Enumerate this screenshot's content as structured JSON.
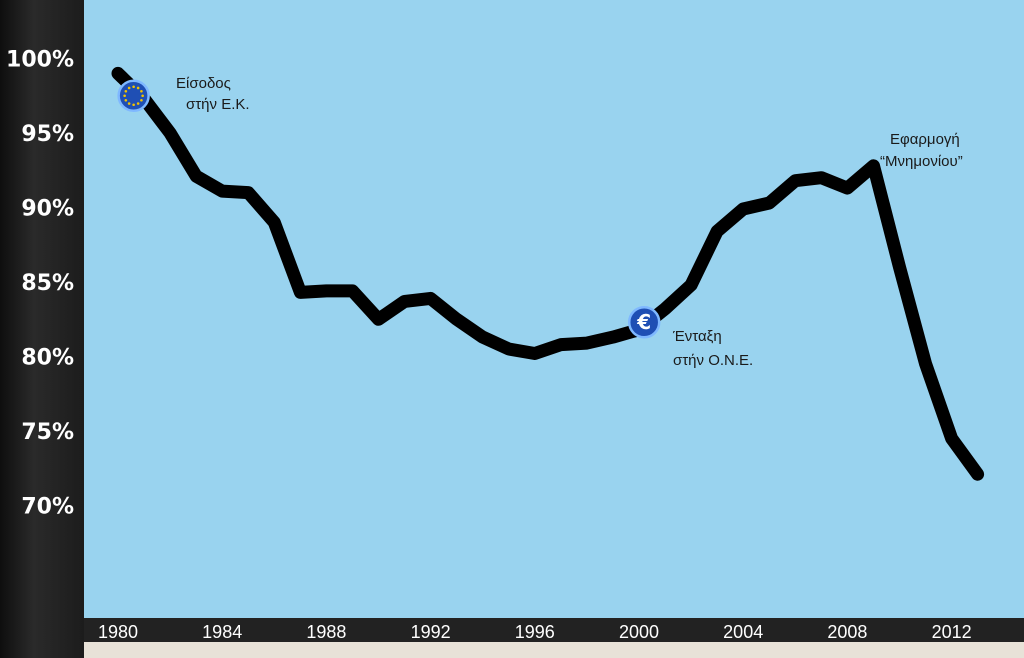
{
  "chart_data": {
    "type": "line",
    "title": "",
    "xlabel": "",
    "ylabel": "",
    "ylim": [
      68,
      101
    ],
    "xlim": [
      1979.3,
      2014.3
    ],
    "y_ticks": [
      "100%",
      "95%",
      "90%",
      "85%",
      "80%",
      "75%",
      "70%"
    ],
    "y_tick_values": [
      100,
      95,
      90,
      85,
      80,
      75,
      70
    ],
    "x_ticks": [
      "1980",
      "1984",
      "1988",
      "1992",
      "1996",
      "2000",
      "2004",
      "2008",
      "2012"
    ],
    "x_tick_values": [
      1980,
      1984,
      1988,
      1992,
      1996,
      2000,
      2004,
      2008,
      2012
    ],
    "grid": false,
    "series": [
      {
        "x": [
          1980,
          1981,
          1982,
          1983,
          1984,
          1985,
          1986,
          1987,
          1988,
          1989,
          1990,
          1991,
          1992,
          1993,
          1994,
          1995,
          1996,
          1997,
          1998,
          1999,
          2000,
          2001,
          2002,
          2003,
          2004,
          2005,
          2006,
          2007,
          2008,
          2009,
          2010,
          2011,
          2012,
          2013
        ],
        "values": [
          99.0,
          97.3,
          95.0,
          92.1,
          91.1,
          91.0,
          89.0,
          84.3,
          84.4,
          84.4,
          82.5,
          83.7,
          83.9,
          82.5,
          81.3,
          80.5,
          80.2,
          80.8,
          80.9,
          81.3,
          81.8,
          83.2,
          84.8,
          88.4,
          89.9,
          90.3,
          91.8,
          92.0,
          91.3,
          92.8,
          86.0,
          79.5,
          74.5,
          72.1
        ],
        "color": "#000000"
      }
    ],
    "annotations": [
      {
        "x": 1980.6,
        "y": 97.5,
        "icon": "eu-flag-icon",
        "lines": [
          "Είσοδος",
          "στήν Ε.Κ."
        ]
      },
      {
        "x": 2000.2,
        "y": 82.3,
        "icon": "euro-icon",
        "lines": [
          "Ένταξη",
          "στήν Ο.Ν.Ε."
        ]
      },
      {
        "x": 2009.0,
        "y": 92.8,
        "lines": [
          "Εφαρμογή",
          "“Μνημονίου”"
        ]
      }
    ],
    "colors": {
      "plot_bg": "#99d3ef",
      "line": "#000000",
      "marker_fill": "#1f4fb4",
      "marker_ring": "#7fb8ff",
      "star": "#f2c200"
    }
  }
}
